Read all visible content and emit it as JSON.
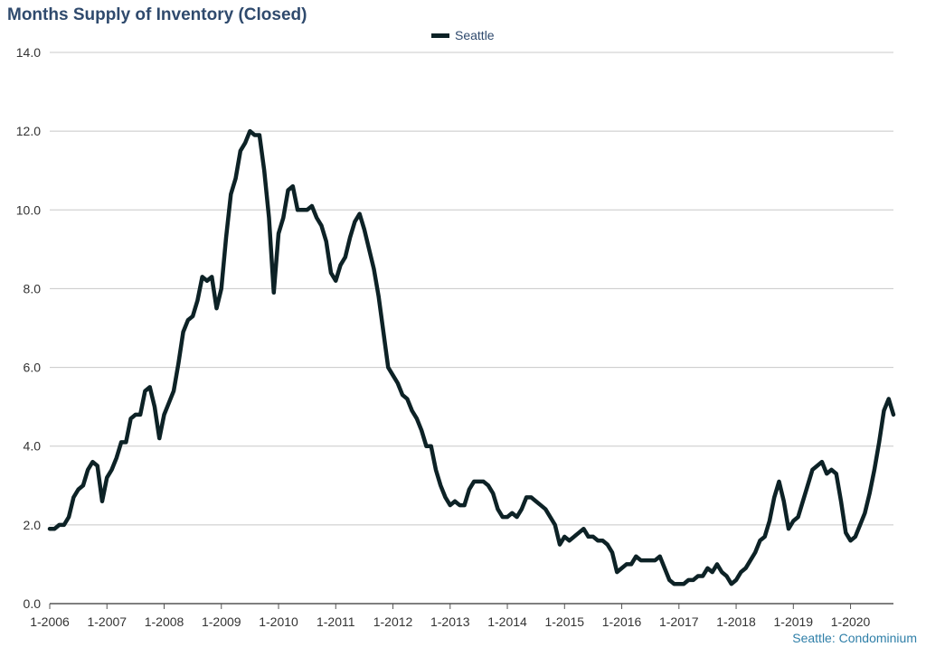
{
  "chart_data": {
    "type": "line",
    "title": "Months Supply of Inventory (Closed)",
    "legend": [
      "Seattle"
    ],
    "footnote": "Seattle: Condominium",
    "ylim": [
      0,
      14
    ],
    "yticks": [
      "0.0",
      "2.0",
      "4.0",
      "6.0",
      "8.0",
      "10.0",
      "12.0",
      "14.0"
    ],
    "xticks": [
      "1-2006",
      "1-2007",
      "1-2008",
      "1-2009",
      "1-2010",
      "1-2011",
      "1-2012",
      "1-2013",
      "1-2014",
      "1-2015",
      "1-2016",
      "1-2017",
      "1-2018",
      "1-2019",
      "1-2020"
    ],
    "colors": {
      "line": "#0d2226",
      "grid": "#c8c8c8",
      "title": "#2f4a6d",
      "footnote": "#2f7fa8"
    },
    "series": [
      {
        "name": "Seattle",
        "values": [
          1.9,
          1.9,
          2.0,
          2.0,
          2.2,
          2.7,
          2.9,
          3.0,
          3.4,
          3.6,
          3.5,
          2.6,
          3.2,
          3.4,
          3.7,
          4.1,
          4.1,
          4.7,
          4.8,
          4.8,
          5.4,
          5.5,
          5.0,
          4.2,
          4.8,
          5.1,
          5.4,
          6.1,
          6.9,
          7.2,
          7.3,
          7.7,
          8.3,
          8.2,
          8.3,
          7.5,
          8.0,
          9.3,
          10.4,
          10.8,
          11.5,
          11.7,
          12.0,
          11.9,
          11.9,
          11.0,
          9.8,
          7.9,
          9.4,
          9.8,
          10.5,
          10.6,
          10.0,
          10.0,
          10.0,
          10.1,
          9.8,
          9.6,
          9.2,
          8.4,
          8.2,
          8.6,
          8.8,
          9.3,
          9.7,
          9.9,
          9.5,
          9.0,
          8.5,
          7.8,
          6.9,
          6.0,
          5.8,
          5.6,
          5.3,
          5.2,
          4.9,
          4.7,
          4.4,
          4.0,
          4.0,
          3.4,
          3.0,
          2.7,
          2.5,
          2.6,
          2.5,
          2.5,
          2.9,
          3.1,
          3.1,
          3.1,
          3.0,
          2.8,
          2.4,
          2.2,
          2.2,
          2.3,
          2.2,
          2.4,
          2.7,
          2.7,
          2.6,
          2.5,
          2.4,
          2.2,
          2.0,
          1.5,
          1.7,
          1.6,
          1.7,
          1.8,
          1.9,
          1.7,
          1.7,
          1.6,
          1.6,
          1.5,
          1.3,
          0.8,
          0.9,
          1.0,
          1.0,
          1.2,
          1.1,
          1.1,
          1.1,
          1.1,
          1.2,
          0.9,
          0.6,
          0.5,
          0.5,
          0.5,
          0.6,
          0.6,
          0.7,
          0.7,
          0.9,
          0.8,
          1.0,
          0.8,
          0.7,
          0.5,
          0.6,
          0.8,
          0.9,
          1.1,
          1.3,
          1.6,
          1.7,
          2.1,
          2.7,
          3.1,
          2.6,
          1.9,
          2.1,
          2.2,
          2.6,
          3.0,
          3.4,
          3.5,
          3.6,
          3.3,
          3.4,
          3.3,
          2.6,
          1.8,
          1.6,
          1.7,
          2.0,
          2.3,
          2.8,
          3.4,
          4.1,
          4.9,
          5.2,
          4.8
        ]
      }
    ]
  }
}
